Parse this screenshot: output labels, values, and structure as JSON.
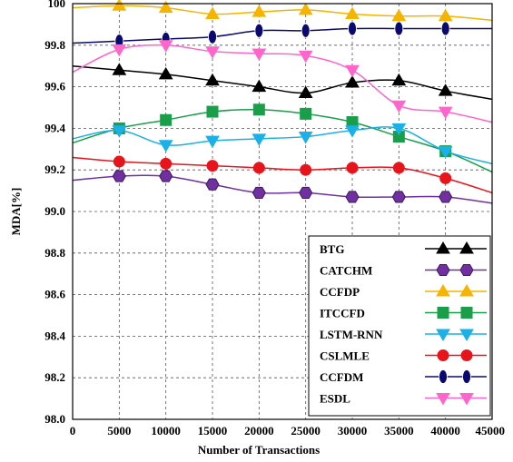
{
  "chart_data": {
    "type": "line",
    "title": "",
    "xlabel": "Number of Transactions",
    "ylabel": "MDA[%]",
    "xlim": [
      0,
      45000
    ],
    "ylim": [
      98.0,
      100.0
    ],
    "xticks": [
      "0",
      "5000",
      "10000",
      "15000",
      "20000",
      "25000",
      "30000",
      "35000",
      "40000",
      "45000"
    ],
    "yticks": [
      "98.0",
      "98.2",
      "98.4",
      "98.6",
      "98.8",
      "99.0",
      "99.2",
      "99.4",
      "99.6",
      "99.8",
      "100"
    ],
    "grid": "dashed",
    "legend_position": "bottom-right",
    "series": [
      {
        "name": "BTG",
        "color": "#000000",
        "marker": "triangle-up",
        "x": [
          0,
          5000,
          10000,
          15000,
          20000,
          25000,
          30000,
          35000,
          40000,
          45000
        ],
        "y": [
          99.7,
          99.68,
          99.66,
          99.63,
          99.6,
          99.57,
          99.62,
          99.63,
          99.58,
          99.54
        ]
      },
      {
        "name": "CATCHM",
        "color": "#7030a0",
        "marker": "hexagon",
        "x": [
          0,
          5000,
          10000,
          15000,
          20000,
          25000,
          30000,
          35000,
          40000,
          45000
        ],
        "y": [
          99.15,
          99.17,
          99.17,
          99.13,
          99.09,
          99.09,
          99.07,
          99.07,
          99.07,
          99.04
        ]
      },
      {
        "name": "CCFDP",
        "color": "#f5b400",
        "marker": "triangle-up",
        "x": [
          0,
          5000,
          10000,
          15000,
          20000,
          25000,
          30000,
          35000,
          40000,
          45000
        ],
        "y": [
          99.98,
          99.99,
          99.98,
          99.95,
          99.96,
          99.97,
          99.95,
          99.94,
          99.94,
          99.92
        ]
      },
      {
        "name": "ITCCFD",
        "color": "#1a9e4a",
        "marker": "square",
        "x": [
          0,
          5000,
          10000,
          15000,
          20000,
          25000,
          30000,
          35000,
          40000,
          45000
        ],
        "y": [
          99.33,
          99.4,
          99.44,
          99.48,
          99.49,
          99.47,
          99.43,
          99.36,
          99.29,
          99.19
        ]
      },
      {
        "name": "LSTM-RNN",
        "color": "#1ab0e8",
        "marker": "triangle-down",
        "x": [
          0,
          5000,
          10000,
          15000,
          20000,
          25000,
          30000,
          35000,
          40000,
          45000
        ],
        "y": [
          99.35,
          99.39,
          99.32,
          99.34,
          99.35,
          99.36,
          99.39,
          99.4,
          99.29,
          99.23
        ]
      },
      {
        "name": "CSLMLE",
        "color": "#e8141c",
        "marker": "circle",
        "x": [
          0,
          5000,
          10000,
          15000,
          20000,
          25000,
          30000,
          35000,
          40000,
          45000
        ],
        "y": [
          99.26,
          99.24,
          99.23,
          99.22,
          99.21,
          99.2,
          99.21,
          99.21,
          99.16,
          99.09
        ]
      },
      {
        "name": "CCFDM",
        "color": "#0a0a6e",
        "marker": "ellipse",
        "x": [
          0,
          5000,
          10000,
          15000,
          20000,
          25000,
          30000,
          35000,
          40000,
          45000
        ],
        "y": [
          99.81,
          99.82,
          99.83,
          99.84,
          99.87,
          99.87,
          99.88,
          99.88,
          99.88,
          99.88
        ]
      },
      {
        "name": "ESDL",
        "color": "#ff66cc",
        "marker": "triangle-down",
        "x": [
          0,
          5000,
          10000,
          15000,
          20000,
          25000,
          30000,
          35000,
          40000,
          45000
        ],
        "y": [
          99.67,
          99.78,
          99.8,
          99.77,
          99.76,
          99.75,
          99.68,
          99.51,
          99.48,
          99.43
        ]
      }
    ]
  }
}
